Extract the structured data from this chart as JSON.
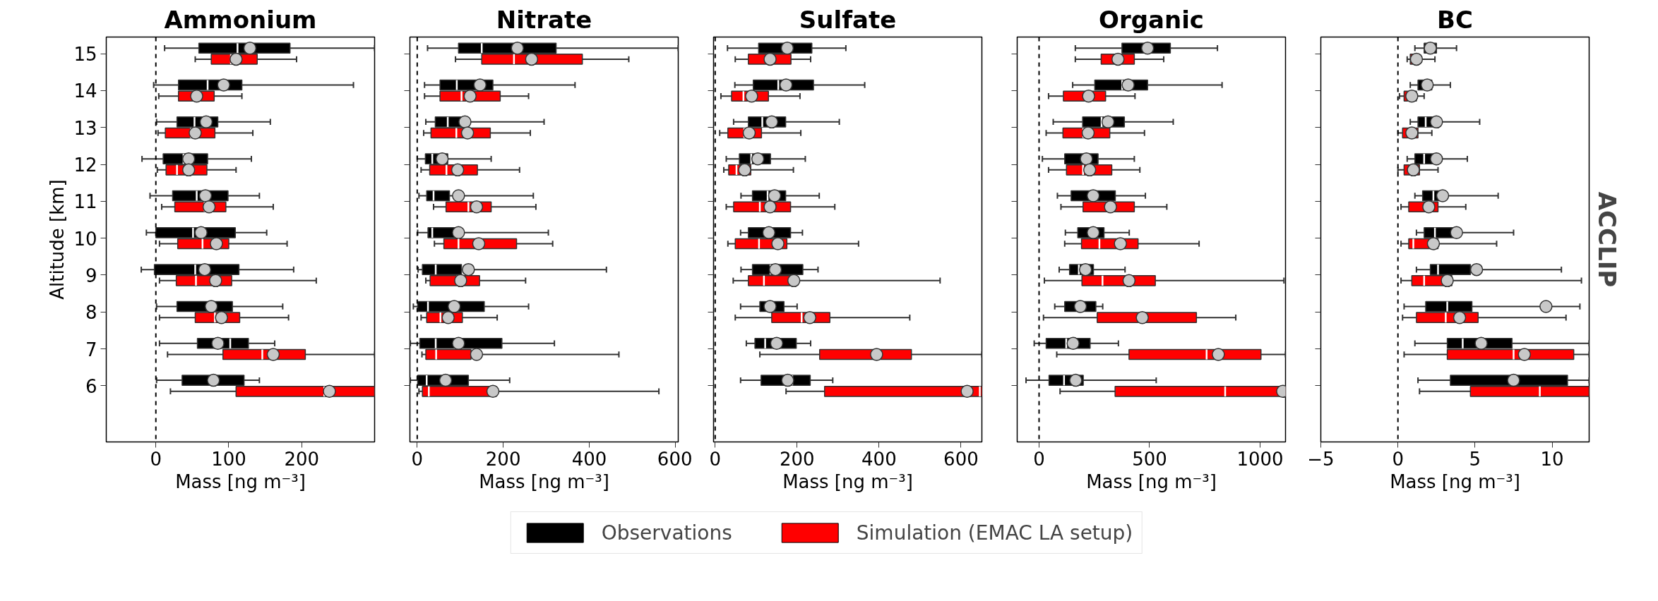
{
  "chart_data": [
    {
      "type": "box",
      "title": "Ammonium",
      "xlabel": "Mass [ng m⁻³]",
      "ylabel": "Altitude [km]",
      "orientation": "horizontal",
      "categories": [
        "15",
        "14",
        "13",
        "12",
        "11",
        "10",
        "9",
        "8",
        "7",
        "6"
      ],
      "xlim": [
        -68,
        300
      ],
      "xticks": [
        0,
        100,
        200
      ],
      "ref_lines": [
        {
          "axis": "x",
          "value": 0,
          "color": "#000000",
          "line_style": "dashed"
        }
      ],
      "series": [
        {
          "color": "#000000",
          "boxes": [
            {
              "low": 12,
              "q1": 59,
              "median": 112,
              "q3": 184,
              "high": 300,
              "mean": 129
            },
            {
              "low": -3,
              "q1": 31,
              "median": 71,
              "q3": 118,
              "high": 271,
              "mean": 93
            },
            {
              "low": 1,
              "q1": 29,
              "median": 53,
              "q3": 85,
              "high": 157,
              "mean": 69
            },
            {
              "low": -19,
              "q1": 10,
              "median": 38,
              "q3": 71,
              "high": 131,
              "mean": 45
            },
            {
              "low": -8,
              "q1": 23,
              "median": 56,
              "q3": 99,
              "high": 142,
              "mean": 68
            },
            {
              "low": -13,
              "q1": 0,
              "median": 51,
              "q3": 109,
              "high": 152,
              "mean": 62
            },
            {
              "low": -20,
              "q1": -2,
              "median": 54,
              "q3": 114,
              "high": 189,
              "mean": 67
            },
            {
              "low": 1,
              "q1": 29,
              "median": 73,
              "q3": 105,
              "high": 174,
              "mean": 76
            },
            {
              "low": 5,
              "q1": 57,
              "median": 102,
              "q3": 127,
              "high": 163,
              "mean": 85
            },
            {
              "low": 1,
              "q1": 36,
              "median": 79,
              "q3": 121,
              "high": 142,
              "mean": 79
            }
          ]
        },
        {
          "color": "#ff0000",
          "boxes": [
            {
              "low": 54,
              "q1": 76,
              "median": 103,
              "q3": 139,
              "high": 193,
              "mean": 110
            },
            {
              "low": 4,
              "q1": 31,
              "median": 56,
              "q3": 80,
              "high": 118,
              "mean": 56
            },
            {
              "low": 3,
              "q1": 13,
              "median": 48,
              "q3": 81,
              "high": 133,
              "mean": 54
            },
            {
              "low": 2,
              "q1": 14,
              "median": 29,
              "q3": 70,
              "high": 110,
              "mean": 45
            },
            {
              "low": 8,
              "q1": 26,
              "median": 67,
              "q3": 96,
              "high": 161,
              "mean": 73
            },
            {
              "low": 5,
              "q1": 30,
              "median": 64,
              "q3": 100,
              "high": 180,
              "mean": 83
            },
            {
              "low": 5,
              "q1": 28,
              "median": 55,
              "q3": 104,
              "high": 220,
              "mean": 82
            },
            {
              "low": 5,
              "q1": 54,
              "median": 81,
              "q3": 115,
              "high": 182,
              "mean": 90
            },
            {
              "low": 16,
              "q1": 92,
              "median": 146,
              "q3": 205,
              "high": 300,
              "mean": 161
            },
            {
              "low": 20,
              "q1": 110,
              "median": 231,
              "q3": 300,
              "high": 300,
              "mean": 238
            }
          ]
        }
      ]
    },
    {
      "type": "box",
      "title": "Nitrate",
      "xlabel": "Mass [ng m⁻³]",
      "orientation": "horizontal",
      "tick_labels": "x",
      "categories": [
        "15",
        "14",
        "13",
        "12",
        "11",
        "10",
        "9",
        "8",
        "7",
        "6"
      ],
      "xlim": [
        -17,
        607
      ],
      "xticks": [
        0,
        200,
        400,
        600
      ],
      "ref_lines": [
        {
          "axis": "x",
          "value": 0,
          "color": "#000000",
          "line_style": "dashed"
        }
      ],
      "series": [
        {
          "color": "#000000",
          "boxes": [
            {
              "low": 24,
              "q1": 96,
              "median": 150,
              "q3": 323,
              "high": 607,
              "mean": 233
            },
            {
              "low": 17,
              "q1": 53,
              "median": 92,
              "q3": 176,
              "high": 367,
              "mean": 146
            },
            {
              "low": 20,
              "q1": 42,
              "median": 71,
              "q3": 118,
              "high": 295,
              "mean": 111
            },
            {
              "low": 0,
              "q1": 19,
              "median": 35,
              "q3": 71,
              "high": 172,
              "mean": 58
            },
            {
              "low": 4,
              "q1": 22,
              "median": 38,
              "q3": 75,
              "high": 270,
              "mean": 96
            },
            {
              "low": 1,
              "q1": 25,
              "median": 35,
              "q3": 96,
              "high": 305,
              "mean": 96
            },
            {
              "low": 2,
              "q1": 12,
              "median": 43,
              "q3": 103,
              "high": 440,
              "mean": 119
            },
            {
              "low": -9,
              "q1": 1,
              "median": 25,
              "q3": 156,
              "high": 259,
              "mean": 86
            },
            {
              "low": -16,
              "q1": 6,
              "median": 43,
              "q3": 197,
              "high": 319,
              "mean": 96
            },
            {
              "low": -16,
              "q1": 1,
              "median": 22,
              "q3": 119,
              "high": 215,
              "mean": 66
            }
          ]
        },
        {
          "color": "#ff0000",
          "boxes": [
            {
              "low": 89,
              "q1": 150,
              "median": 225,
              "q3": 384,
              "high": 492,
              "mean": 266
            },
            {
              "low": 17,
              "q1": 53,
              "median": 103,
              "q3": 193,
              "high": 259,
              "mean": 123
            },
            {
              "low": 15,
              "q1": 32,
              "median": 91,
              "q3": 170,
              "high": 263,
              "mean": 117
            },
            {
              "low": 9,
              "q1": 29,
              "median": 68,
              "q3": 140,
              "high": 238,
              "mean": 94
            },
            {
              "low": 38,
              "q1": 67,
              "median": 119,
              "q3": 172,
              "high": 276,
              "mean": 138
            },
            {
              "low": 40,
              "q1": 62,
              "median": 96,
              "q3": 231,
              "high": 315,
              "mean": 143
            },
            {
              "low": 20,
              "q1": 30,
              "median": 93,
              "q3": 145,
              "high": 252,
              "mean": 101
            },
            {
              "low": 9,
              "q1": 22,
              "median": 54,
              "q3": 105,
              "high": 186,
              "mean": 72
            },
            {
              "low": 11,
              "q1": 20,
              "median": 44,
              "q3": 125,
              "high": 469,
              "mean": 138
            },
            {
              "low": 4,
              "q1": 12,
              "median": 27,
              "q3": 184,
              "high": 562,
              "mean": 176
            }
          ]
        }
      ]
    },
    {
      "type": "box",
      "title": "Sulfate",
      "xlabel": "Mass [ng m⁻³]",
      "orientation": "horizontal",
      "tick_labels": "x",
      "legend": "bottom",
      "categories": [
        "15",
        "14",
        "13",
        "12",
        "11",
        "10",
        "9",
        "8",
        "7",
        "6"
      ],
      "xlim": [
        -4,
        651
      ],
      "xticks": [
        0,
        200,
        400,
        600
      ],
      "ref_lines": [
        {
          "axis": "x",
          "value": 0,
          "color": "#000000",
          "line_style": "dashed"
        }
      ],
      "series": [
        {
          "name": "Observations",
          "color": "#000000",
          "boxes": [
            {
              "low": 30,
              "q1": 106,
              "median": 169,
              "q3": 236,
              "high": 319,
              "mean": 176
            },
            {
              "low": 48,
              "q1": 93,
              "median": 154,
              "q3": 240,
              "high": 365,
              "mean": 173
            },
            {
              "low": 45,
              "q1": 81,
              "median": 115,
              "q3": 172,
              "high": 303,
              "mean": 138
            },
            {
              "low": 27,
              "q1": 59,
              "median": 88,
              "q3": 135,
              "high": 220,
              "mean": 104
            },
            {
              "low": 63,
              "q1": 91,
              "median": 128,
              "q3": 172,
              "high": 254,
              "mean": 145
            },
            {
              "low": 62,
              "q1": 81,
              "median": 131,
              "q3": 184,
              "high": 213,
              "mean": 131
            },
            {
              "low": 63,
              "q1": 91,
              "median": 135,
              "q3": 214,
              "high": 251,
              "mean": 147
            },
            {
              "low": 62,
              "q1": 109,
              "median": 133,
              "q3": 168,
              "high": 200,
              "mean": 134
            },
            {
              "low": 76,
              "q1": 97,
              "median": 122,
              "q3": 198,
              "high": 233,
              "mean": 150
            },
            {
              "low": 62,
              "q1": 112,
              "median": 188,
              "q3": 232,
              "high": 287,
              "mean": 177
            }
          ]
        },
        {
          "name": "Simulation (EMAC LA setup)",
          "color": "#ff0000",
          "boxes": [
            {
              "low": 49,
              "q1": 81,
              "median": 126,
              "q3": 185,
              "high": 233,
              "mean": 134
            },
            {
              "low": 14,
              "q1": 40,
              "median": 69,
              "q3": 130,
              "high": 207,
              "mean": 89
            },
            {
              "low": 11,
              "q1": 31,
              "median": 71,
              "q3": 113,
              "high": 209,
              "mean": 83
            },
            {
              "low": 21,
              "q1": 33,
              "median": 52,
              "q3": 87,
              "high": 191,
              "mean": 72
            },
            {
              "low": 27,
              "q1": 45,
              "median": 109,
              "q3": 184,
              "high": 292,
              "mean": 134
            },
            {
              "low": 31,
              "q1": 49,
              "median": 107,
              "q3": 175,
              "high": 350,
              "mean": 153
            },
            {
              "low": 44,
              "q1": 81,
              "median": 119,
              "q3": 192,
              "high": 549,
              "mean": 192
            },
            {
              "low": 49,
              "q1": 138,
              "median": 211,
              "q3": 280,
              "high": 475,
              "mean": 231
            },
            {
              "low": 109,
              "q1": 255,
              "median": 394,
              "q3": 479,
              "high": 651,
              "mean": 394
            },
            {
              "low": 173,
              "q1": 267,
              "median": 646,
              "q3": 651,
              "high": 651,
              "mean": 615
            }
          ]
        }
      ]
    },
    {
      "type": "box",
      "title": "Organic",
      "xlabel": "Mass [ng m⁻³]",
      "orientation": "horizontal",
      "tick_labels": "x",
      "categories": [
        "15",
        "14",
        "13",
        "12",
        "11",
        "10",
        "9",
        "8",
        "7",
        "6"
      ],
      "xlim": [
        -99,
        1115
      ],
      "xticks": [
        0,
        500,
        1000
      ],
      "ref_lines": [
        {
          "axis": "x",
          "value": 0,
          "color": "#000000",
          "line_style": "dashed"
        }
      ],
      "series": [
        {
          "color": "#000000",
          "boxes": [
            {
              "low": 164,
              "q1": 375,
              "median": 494,
              "q3": 594,
              "high": 807,
              "mean": 491
            },
            {
              "low": 152,
              "q1": 252,
              "median": 376,
              "q3": 491,
              "high": 828,
              "mean": 403
            },
            {
              "low": 64,
              "q1": 197,
              "median": 283,
              "q3": 386,
              "high": 607,
              "mean": 312
            },
            {
              "low": 15,
              "q1": 116,
              "median": 201,
              "q3": 267,
              "high": 431,
              "mean": 214
            },
            {
              "low": 83,
              "q1": 145,
              "median": 235,
              "q3": 345,
              "high": 481,
              "mean": 245
            },
            {
              "low": 119,
              "q1": 175,
              "median": 236,
              "q3": 294,
              "high": 408,
              "mean": 245
            },
            {
              "low": 91,
              "q1": 138,
              "median": 180,
              "q3": 246,
              "high": 389,
              "mean": 210
            },
            {
              "low": 71,
              "q1": 116,
              "median": 172,
              "q3": 257,
              "high": 288,
              "mean": 187
            },
            {
              "low": -22,
              "q1": 32,
              "median": 123,
              "q3": 231,
              "high": 359,
              "mean": 154
            },
            {
              "low": -59,
              "q1": 45,
              "median": 113,
              "q3": 200,
              "high": 530,
              "mean": 166
            }
          ]
        },
        {
          "color": "#ff0000",
          "boxes": [
            {
              "low": 164,
              "q1": 281,
              "median": 357,
              "q3": 431,
              "high": 564,
              "mean": 357
            },
            {
              "low": 43,
              "q1": 110,
              "median": 224,
              "q3": 301,
              "high": 434,
              "mean": 224
            },
            {
              "low": 32,
              "q1": 108,
              "median": 200,
              "q3": 320,
              "high": 477,
              "mean": 222
            },
            {
              "low": 43,
              "q1": 124,
              "median": 199,
              "q3": 329,
              "high": 456,
              "mean": 229
            },
            {
              "low": 99,
              "q1": 199,
              "median": 312,
              "q3": 431,
              "high": 578,
              "mean": 323
            },
            {
              "low": 116,
              "q1": 192,
              "median": 273,
              "q3": 448,
              "high": 724,
              "mean": 368
            },
            {
              "low": 24,
              "q1": 194,
              "median": 287,
              "q3": 526,
              "high": 1108,
              "mean": 407
            },
            {
              "low": 20,
              "q1": 263,
              "median": 452,
              "q3": 712,
              "high": 890,
              "mean": 467
            },
            {
              "low": 80,
              "q1": 407,
              "median": 758,
              "q3": 1004,
              "high": 1115,
              "mean": 811
            },
            {
              "low": 95,
              "q1": 344,
              "median": 842,
              "q3": 1115,
              "high": 1115,
              "mean": 1102
            }
          ]
        }
      ]
    },
    {
      "type": "box",
      "title": "BC",
      "xlabel": "Mass [ng m⁻³]",
      "orientation": "horizontal",
      "tick_labels": "x",
      "categories": [
        "15",
        "14",
        "13",
        "12",
        "11",
        "10",
        "9",
        "8",
        "7",
        "6"
      ],
      "xlim": [
        -5,
        12.4
      ],
      "xticks": [
        {
          "value": -5,
          "label": "−5"
        },
        0,
        5,
        10
      ],
      "ref_lines": [
        {
          "axis": "x",
          "value": 0,
          "color": "#000000",
          "line_style": "dashed"
        }
      ],
      "annotations": [
        "ACCLIP"
      ],
      "series": [
        {
          "color": "#000000",
          "boxes": [
            {
              "low": 1.1,
              "q1": 1.7,
              "median": 2.1,
              "q3": 2.5,
              "high": 3.8,
              "mean": 2.1
            },
            {
              "low": 0.8,
              "q1": 1.3,
              "median": 1.8,
              "q3": 2.2,
              "high": 3.4,
              "mean": 1.9
            },
            {
              "low": 0.8,
              "q1": 1.3,
              "median": 1.8,
              "q3": 2.5,
              "high": 5.3,
              "mean": 2.5
            },
            {
              "low": 0.6,
              "q1": 1.1,
              "median": 1.7,
              "q3": 2.3,
              "high": 4.5,
              "mean": 2.5
            },
            {
              "low": 1.1,
              "q1": 1.6,
              "median": 2.3,
              "q3": 2.9,
              "high": 6.5,
              "mean": 2.9
            },
            {
              "low": 1.2,
              "q1": 1.7,
              "median": 2.4,
              "q3": 3.8,
              "high": 7.5,
              "mean": 3.8
            },
            {
              "low": 1.2,
              "q1": 2.1,
              "median": 2.6,
              "q3": 4.7,
              "high": 10.6,
              "mean": 5.1
            },
            {
              "low": 0.4,
              "q1": 1.8,
              "median": 3.2,
              "q3": 4.8,
              "high": 11.8,
              "mean": 9.6
            },
            {
              "low": 1.1,
              "q1": 3.2,
              "median": 4.2,
              "q3": 7.4,
              "high": 12.4,
              "mean": 5.4
            },
            {
              "low": 1.3,
              "q1": 3.4,
              "median": 7.5,
              "q3": 11.0,
              "high": 12.4,
              "mean": 7.5
            }
          ]
        },
        {
          "color": "#ff0000",
          "boxes": [
            {
              "low": 0.6,
              "q1": 0.8,
              "median": 1.1,
              "q3": 1.4,
              "high": 2.4,
              "mean": 1.2
            },
            {
              "low": 0.1,
              "q1": 0.4,
              "median": 0.7,
              "q3": 1.2,
              "high": 1.7,
              "mean": 0.9
            },
            {
              "low": 0.0,
              "q1": 0.3,
              "median": 0.8,
              "q3": 1.3,
              "high": 2.2,
              "mean": 0.9
            },
            {
              "low": 0.0,
              "q1": 0.4,
              "median": 0.9,
              "q3": 1.4,
              "high": 2.6,
              "mean": 1.0
            },
            {
              "low": 0.2,
              "q1": 0.7,
              "median": 2.0,
              "q3": 2.6,
              "high": 4.4,
              "mean": 2.0
            },
            {
              "low": 0.2,
              "q1": 0.7,
              "median": 1.0,
              "q3": 2.6,
              "high": 6.4,
              "mean": 2.3
            },
            {
              "low": 0.2,
              "q1": 0.9,
              "median": 1.7,
              "q3": 3.5,
              "high": 11.9,
              "mean": 3.2
            },
            {
              "low": 0.3,
              "q1": 1.2,
              "median": 3.1,
              "q3": 5.2,
              "high": 10.9,
              "mean": 4.0
            },
            {
              "low": 0.4,
              "q1": 3.2,
              "median": 7.5,
              "q3": 11.4,
              "high": 12.4,
              "mean": 8.2
            },
            {
              "low": 1.4,
              "q1": 4.7,
              "median": 9.2,
              "q3": 12.4,
              "high": 12.4
            }
          ]
        }
      ]
    }
  ]
}
